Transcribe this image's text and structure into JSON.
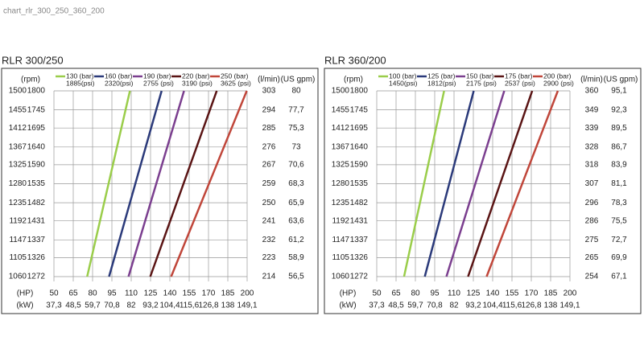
{
  "page_title": "chart_rlr_300_250_360_200",
  "chart_data": [
    {
      "type": "line",
      "title": "RLR 300/250",
      "grid": true,
      "rpm_label": "(rpm)",
      "ylim": [
        1060,
        1500
      ],
      "yticks": [
        1060,
        1105,
        1147,
        1192,
        1235,
        1280,
        1325,
        1367,
        1412,
        1455,
        1500
      ],
      "rpm_alt": [
        1272,
        1326,
        1337,
        1431,
        1482,
        1535,
        1590,
        1640,
        1695,
        1745,
        1800
      ],
      "flow_label": "(l/min)",
      "flow": [
        214,
        223,
        232,
        241,
        250,
        259,
        267,
        276,
        285,
        294,
        303
      ],
      "gpm_label": "(US gpm)",
      "gpm": [
        "56,5",
        "58,9",
        "61,2",
        "63,6",
        "65,9",
        "68,3",
        "70,6",
        "73",
        "75,3",
        "77,7",
        "80"
      ],
      "x_label": "(HP)",
      "xlim": [
        50,
        200
      ],
      "xticks": [
        50,
        65,
        80,
        95,
        110,
        125,
        140,
        155,
        170,
        185,
        200
      ],
      "kw_label": "(kW)",
      "kw": [
        "37,3",
        "48,5",
        "59,7",
        "70,8",
        "82",
        "93,2",
        "104,4",
        "115,6",
        "126,8",
        "138",
        "149,1"
      ],
      "series": [
        {
          "name": "130 (bar)",
          "psi": "1885(psi)",
          "color": "#9acd4a",
          "x": [
            75.8,
            109
          ],
          "values": [
            1060,
            1500
          ]
        },
        {
          "name": "160 (bar)",
          "psi": "2320(psi)",
          "color": "#2b3a7a",
          "x": [
            92.8,
            133.6
          ],
          "values": [
            1060,
            1500
          ]
        },
        {
          "name": "190 (bar)",
          "psi": "2755 (psi)",
          "color": "#7b3f8f",
          "x": [
            107.9,
            151
          ],
          "values": [
            1060,
            1500
          ]
        },
        {
          "name": "220 (bar)",
          "psi": "3190 (psi)",
          "color": "#5a1414",
          "x": [
            124.8,
            176.4
          ],
          "values": [
            1060,
            1500
          ]
        },
        {
          "name": "250 (bar)",
          "psi": "3625 (psi)",
          "color": "#c0463a",
          "x": [
            141,
            199.7
          ],
          "values": [
            1060,
            1500
          ]
        }
      ]
    },
    {
      "type": "line",
      "title": "RLR 360/200",
      "grid": true,
      "rpm_label": "(rpm)",
      "ylim": [
        1060,
        1500
      ],
      "yticks": [
        1060,
        1105,
        1147,
        1192,
        1235,
        1280,
        1325,
        1367,
        1412,
        1455,
        1500
      ],
      "rpm_alt": [
        1272,
        1326,
        1337,
        1431,
        1482,
        1535,
        1590,
        1640,
        1695,
        1745,
        1800
      ],
      "flow_label": "(l/min)",
      "flow": [
        254,
        265,
        275,
        286,
        296,
        307,
        318,
        328,
        339,
        349,
        360
      ],
      "gpm_label": "(US gpm)",
      "gpm": [
        "67,1",
        "69,9",
        "72,7",
        "75,5",
        "78,3",
        "81,1",
        "83,9",
        "86,7",
        "89,5",
        "92,3",
        "95,1"
      ],
      "x_label": "(HP)",
      "xlim": [
        50,
        200
      ],
      "xticks": [
        50,
        65,
        80,
        95,
        110,
        125,
        140,
        155,
        170,
        185,
        200
      ],
      "kw_label": "(kW)",
      "kw": [
        "37,3",
        "48,5",
        "59,7",
        "70,8",
        "82",
        "93,2",
        "104,4",
        "115,6",
        "126,8",
        "138",
        "149,1"
      ],
      "series": [
        {
          "name": "100 (bar)",
          "psi": "1450(psi)",
          "color": "#9acd4a",
          "x": [
            71.2,
            102.3
          ],
          "values": [
            1060,
            1500
          ]
        },
        {
          "name": "125 (bar)",
          "psi": "1812(psi)",
          "color": "#2b3a7a",
          "x": [
            87.3,
            125.3
          ],
          "values": [
            1060,
            1500
          ]
        },
        {
          "name": "150 (bar)",
          "psi": "2175 (psi)",
          "color": "#7b3f8f",
          "x": [
            104.1,
            149
          ],
          "values": [
            1060,
            1500
          ]
        },
        {
          "name": "175 (bar)",
          "psi": "2537 (psi)",
          "color": "#5a1414",
          "x": [
            120.9,
            170.7
          ],
          "values": [
            1060,
            1500
          ]
        },
        {
          "name": "200 (bar)",
          "psi": "2900 (psi)",
          "color": "#c0463a",
          "x": [
            135.3,
            190.6
          ],
          "values": [
            1060,
            1500
          ]
        }
      ]
    }
  ]
}
